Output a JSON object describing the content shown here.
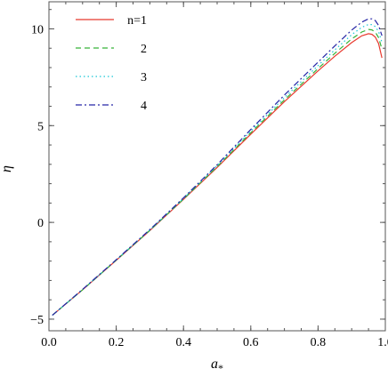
{
  "chart_data": {
    "type": "line",
    "xlabel": "a",
    "xlabel_sub": "*",
    "ylabel": "η",
    "xlim": [
      0.0,
      1.0
    ],
    "ylim": [
      -5.6,
      11.4
    ],
    "xticks": [
      0.0,
      0.2,
      0.4,
      0.6,
      0.8,
      1.0
    ],
    "xtick_labels": [
      "0.0",
      "0.2",
      "0.4",
      "0.6",
      "0.8",
      "1.0"
    ],
    "yticks": [
      -5,
      0,
      5,
      10
    ],
    "ytick_labels": [
      "−5",
      "0",
      "5",
      "10"
    ],
    "legend_position": "top-left",
    "grid": false,
    "series": [
      {
        "name": "n=1",
        "color": "#e8392e",
        "dash": "solid",
        "x": [
          0.01,
          0.1,
          0.2,
          0.3,
          0.4,
          0.5,
          0.6,
          0.7,
          0.8,
          0.85,
          0.9,
          0.93,
          0.95,
          0.96,
          0.97,
          0.98,
          0.99
        ],
        "y": [
          -4.8,
          -3.48,
          -1.96,
          -0.42,
          1.19,
          2.84,
          4.56,
          6.24,
          7.83,
          8.59,
          9.29,
          9.64,
          9.75,
          9.72,
          9.58,
          9.24,
          8.5
        ]
      },
      {
        "name": "2",
        "color": "#36b338",
        "dash": "dashed",
        "x": [
          0.01,
          0.1,
          0.2,
          0.3,
          0.4,
          0.5,
          0.6,
          0.7,
          0.8,
          0.85,
          0.9,
          0.93,
          0.95,
          0.96,
          0.97,
          0.98,
          0.99
        ],
        "y": [
          -4.8,
          -3.48,
          -1.95,
          -0.41,
          1.21,
          2.88,
          4.63,
          6.33,
          7.95,
          8.74,
          9.48,
          9.84,
          9.97,
          9.95,
          9.84,
          9.55,
          8.95
        ]
      },
      {
        "name": "3",
        "color": "#18c6d6",
        "dash": "dotted",
        "x": [
          0.01,
          0.1,
          0.2,
          0.3,
          0.4,
          0.5,
          0.6,
          0.7,
          0.8,
          0.85,
          0.9,
          0.93,
          0.95,
          0.96,
          0.97,
          0.98,
          0.99
        ],
        "y": [
          -4.8,
          -3.47,
          -1.94,
          -0.39,
          1.24,
          2.93,
          4.71,
          6.45,
          8.1,
          8.92,
          9.7,
          10.08,
          10.23,
          10.22,
          10.12,
          9.86,
          9.3
        ]
      },
      {
        "name": "4",
        "color": "#2626a6",
        "dash": "dashdot",
        "x": [
          0.01,
          0.1,
          0.2,
          0.3,
          0.4,
          0.5,
          0.6,
          0.7,
          0.8,
          0.85,
          0.9,
          0.93,
          0.95,
          0.96,
          0.97,
          0.98,
          0.99
        ],
        "y": [
          -4.8,
          -3.46,
          -1.93,
          -0.37,
          1.27,
          2.98,
          4.8,
          6.58,
          8.28,
          9.12,
          9.94,
          10.35,
          10.52,
          10.52,
          10.43,
          10.18,
          9.65
        ]
      }
    ]
  }
}
